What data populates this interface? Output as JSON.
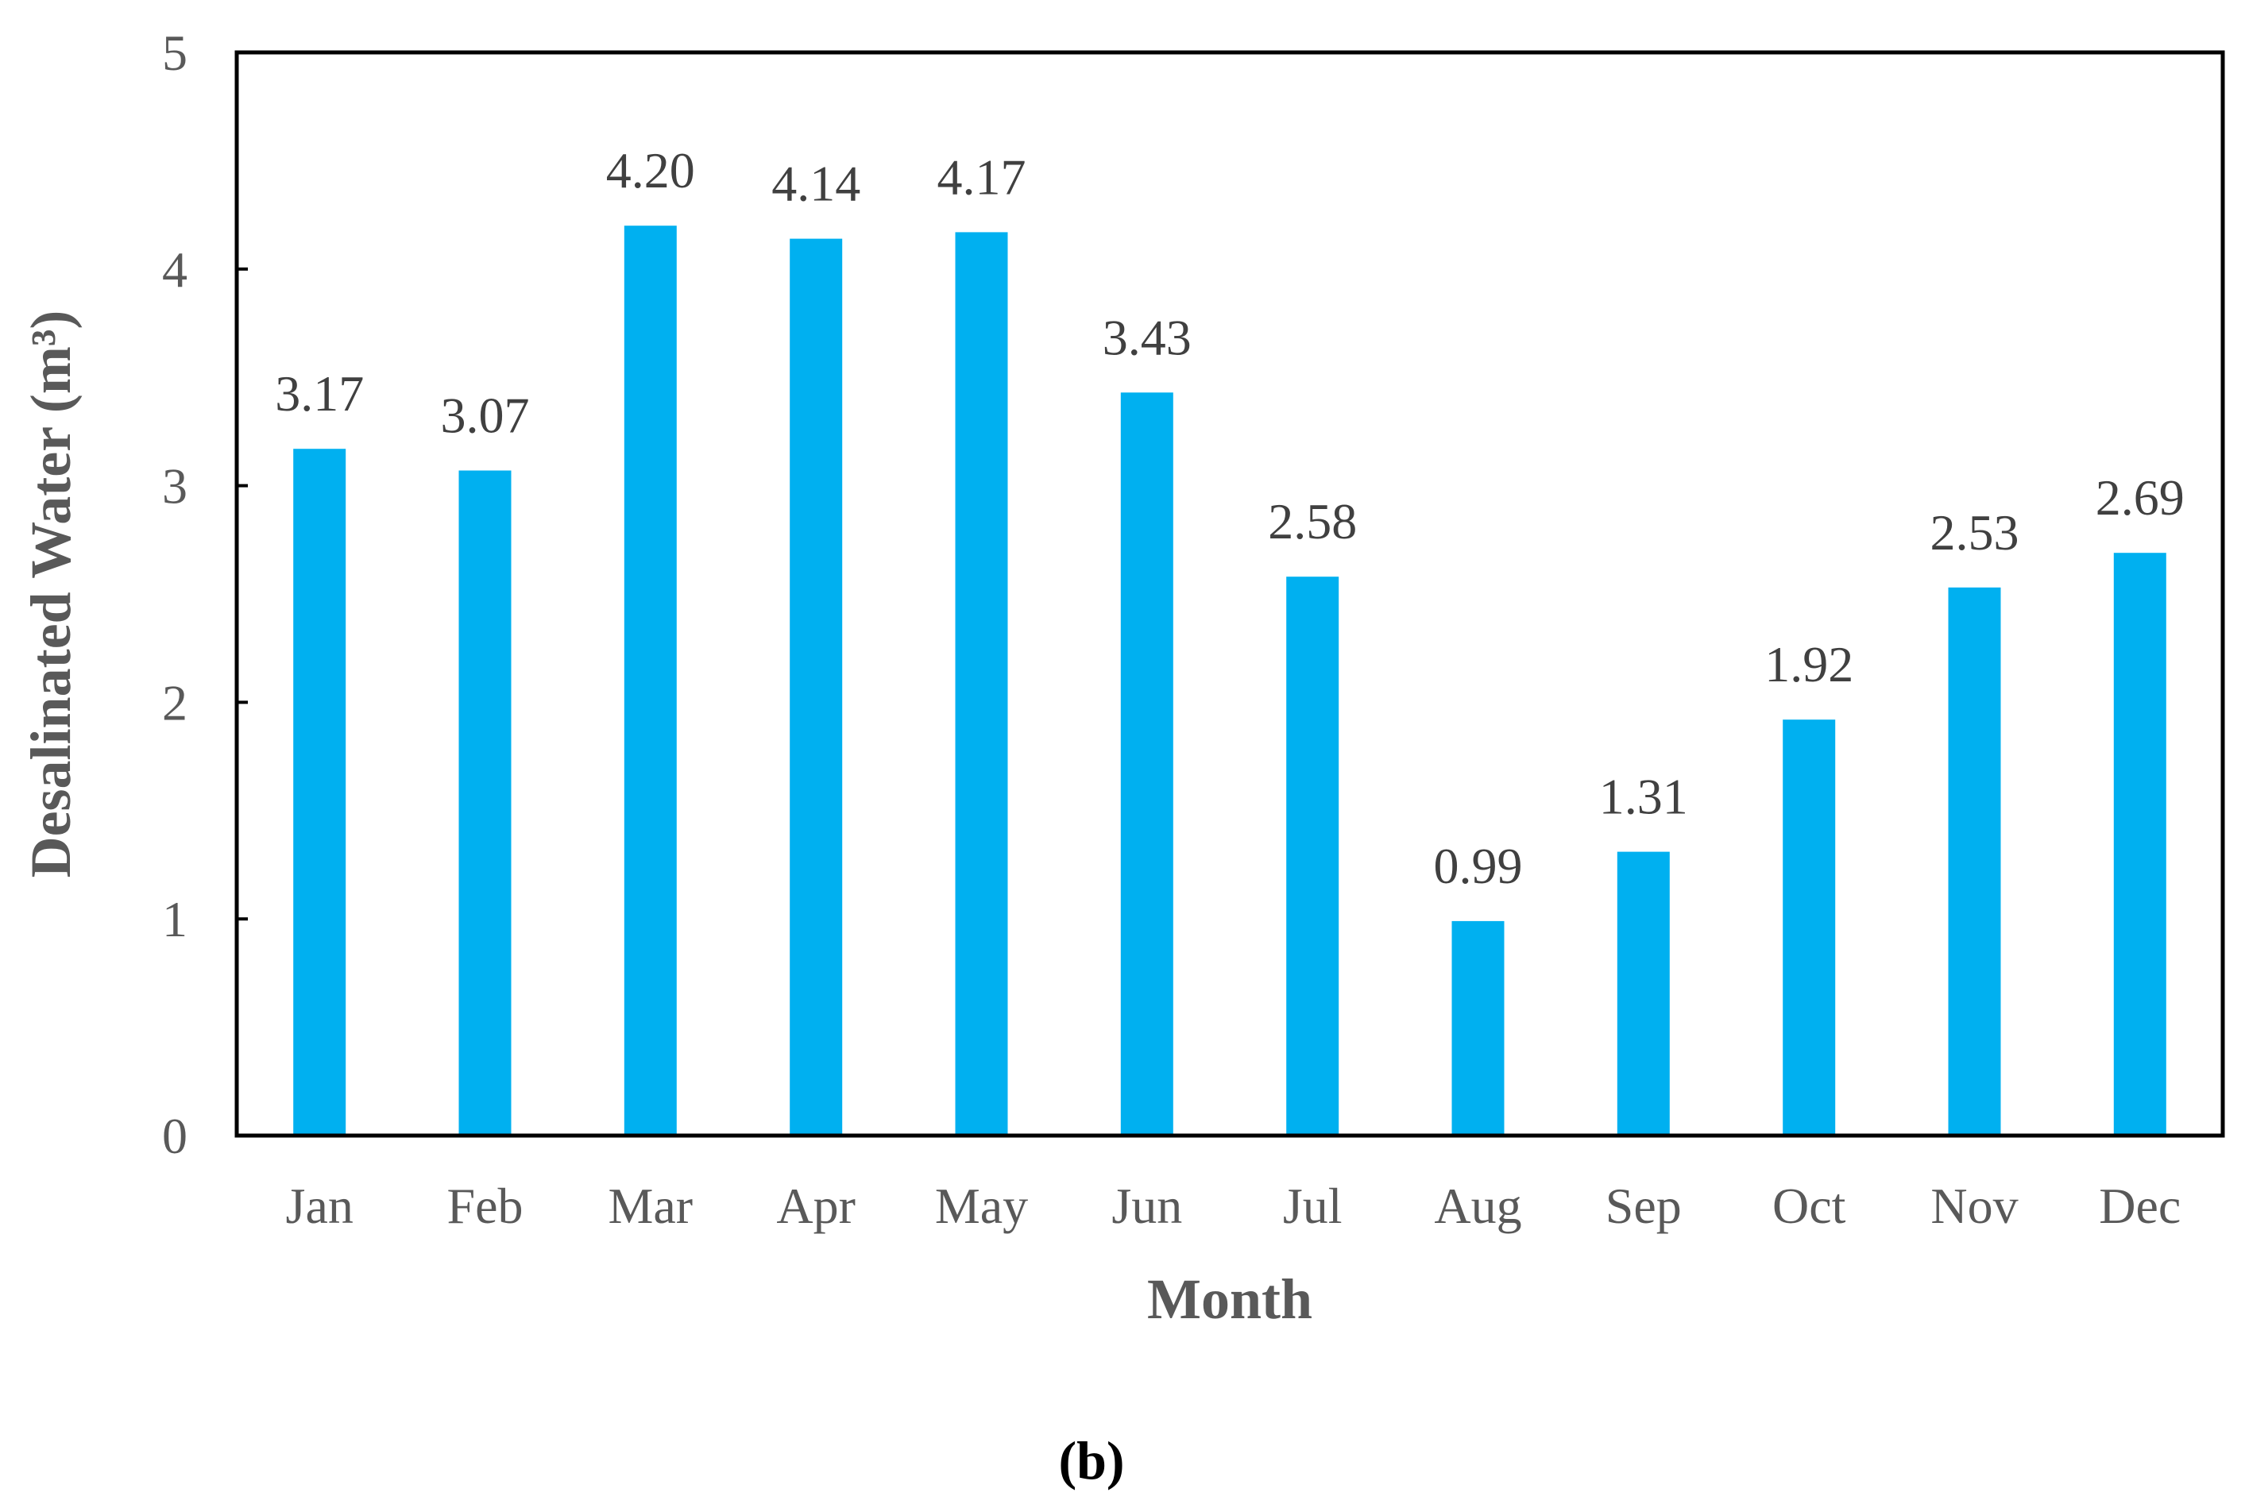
{
  "chart_data": {
    "type": "bar",
    "categories": [
      "Jan",
      "Feb",
      "Mar",
      "Apr",
      "May",
      "Jun",
      "Jul",
      "Aug",
      "Sep",
      "Oct",
      "Nov",
      "Dec"
    ],
    "values": [
      3.17,
      3.07,
      4.2,
      4.14,
      4.17,
      3.43,
      2.58,
      0.99,
      1.31,
      1.92,
      2.53,
      2.69
    ],
    "data_labels": [
      "3.17",
      "3.07",
      "4.20",
      "4.14",
      "4.17",
      "3.43",
      "2.58",
      "0.99",
      "1.31",
      "1.92",
      "2.53",
      "2.69"
    ],
    "yticks": [
      "0",
      "1",
      "2",
      "3",
      "4",
      "5"
    ],
    "xlabel": "Month",
    "ylabel": "Desalinated Water (m³)",
    "ylim": [
      0,
      5
    ],
    "grid": false,
    "bar_color": "#00B0F0",
    "panel_label": "(b)"
  }
}
